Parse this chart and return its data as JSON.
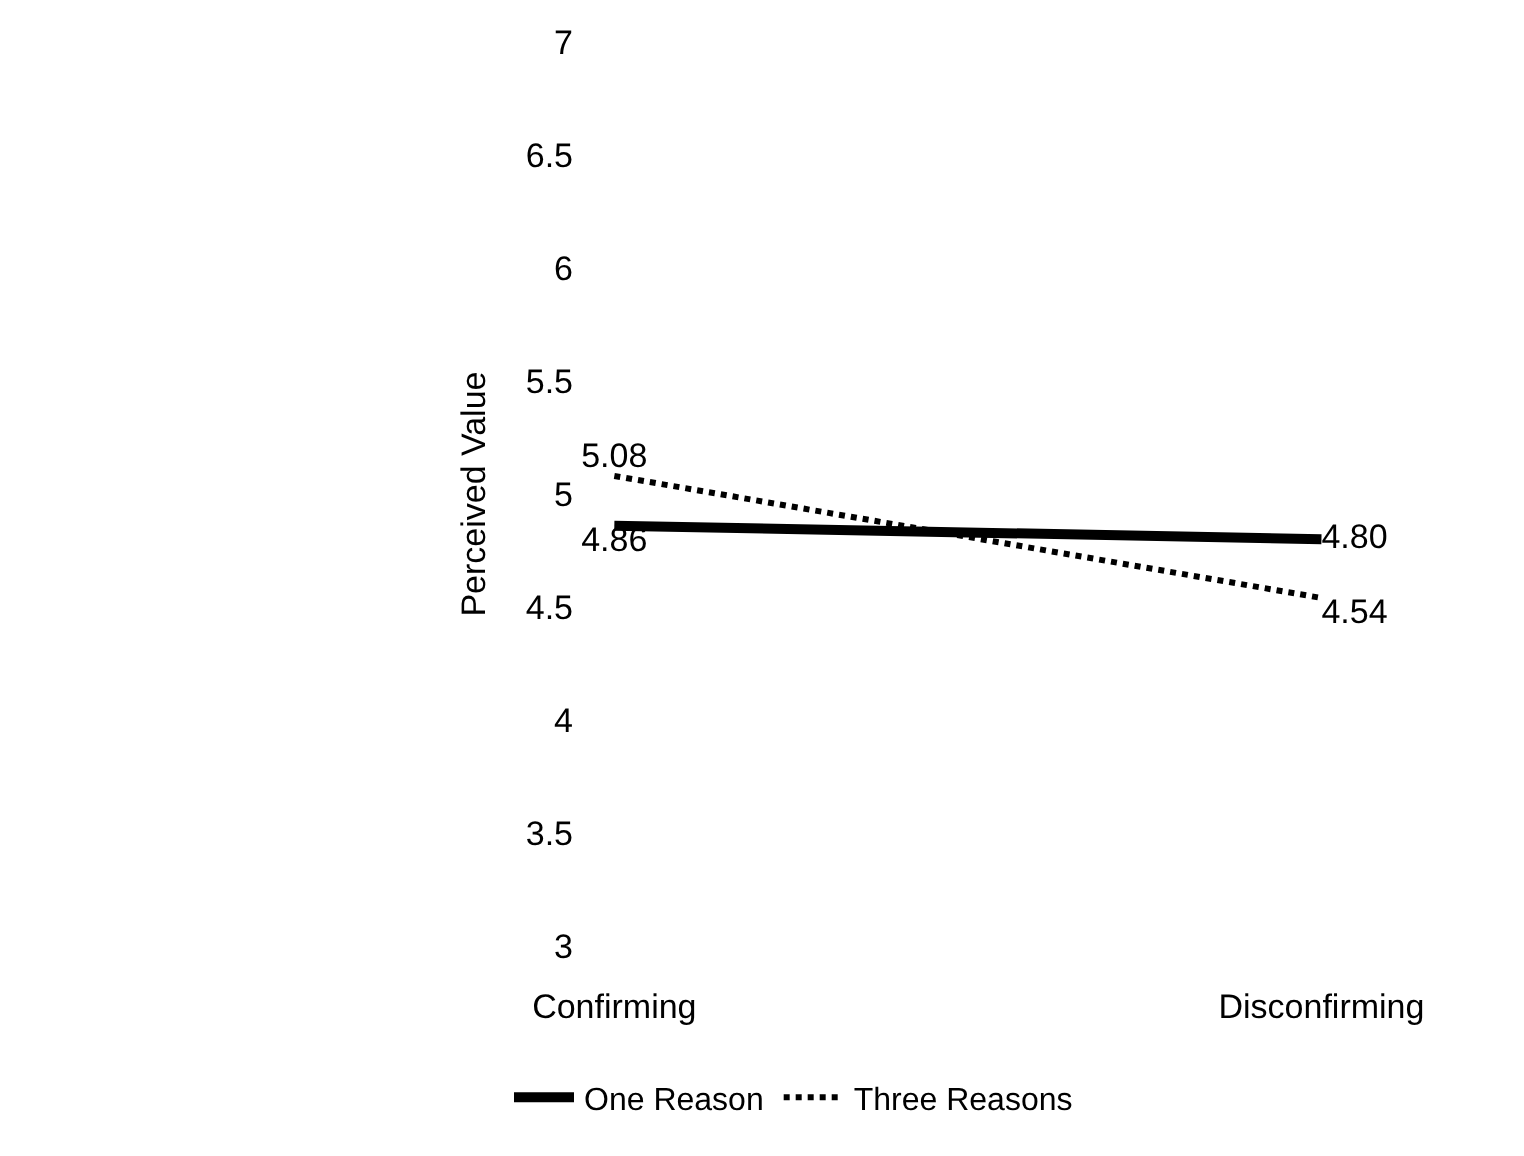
{
  "chart_data": {
    "type": "line",
    "ylabel": "Perceived Value",
    "categories": [
      "Confirming",
      "Disconfirming"
    ],
    "series": [
      {
        "name": "One Reason",
        "color": "#000000",
        "values": [
          4.86,
          4.8
        ],
        "value_labels": [
          "4.86",
          "4.80"
        ],
        "line_style": "solid"
      },
      {
        "name": "Three Reasons",
        "color": "#000000",
        "values": [
          5.08,
          4.54
        ],
        "value_labels": [
          "5.08",
          "4.54"
        ],
        "line_style": "dotted"
      }
    ],
    "ylim": [
      3,
      7
    ],
    "yticks": [
      3,
      3.5,
      4,
      4.5,
      5,
      5.5,
      6,
      6.5,
      7
    ],
    "legend": "bottom",
    "marker": "none"
  }
}
